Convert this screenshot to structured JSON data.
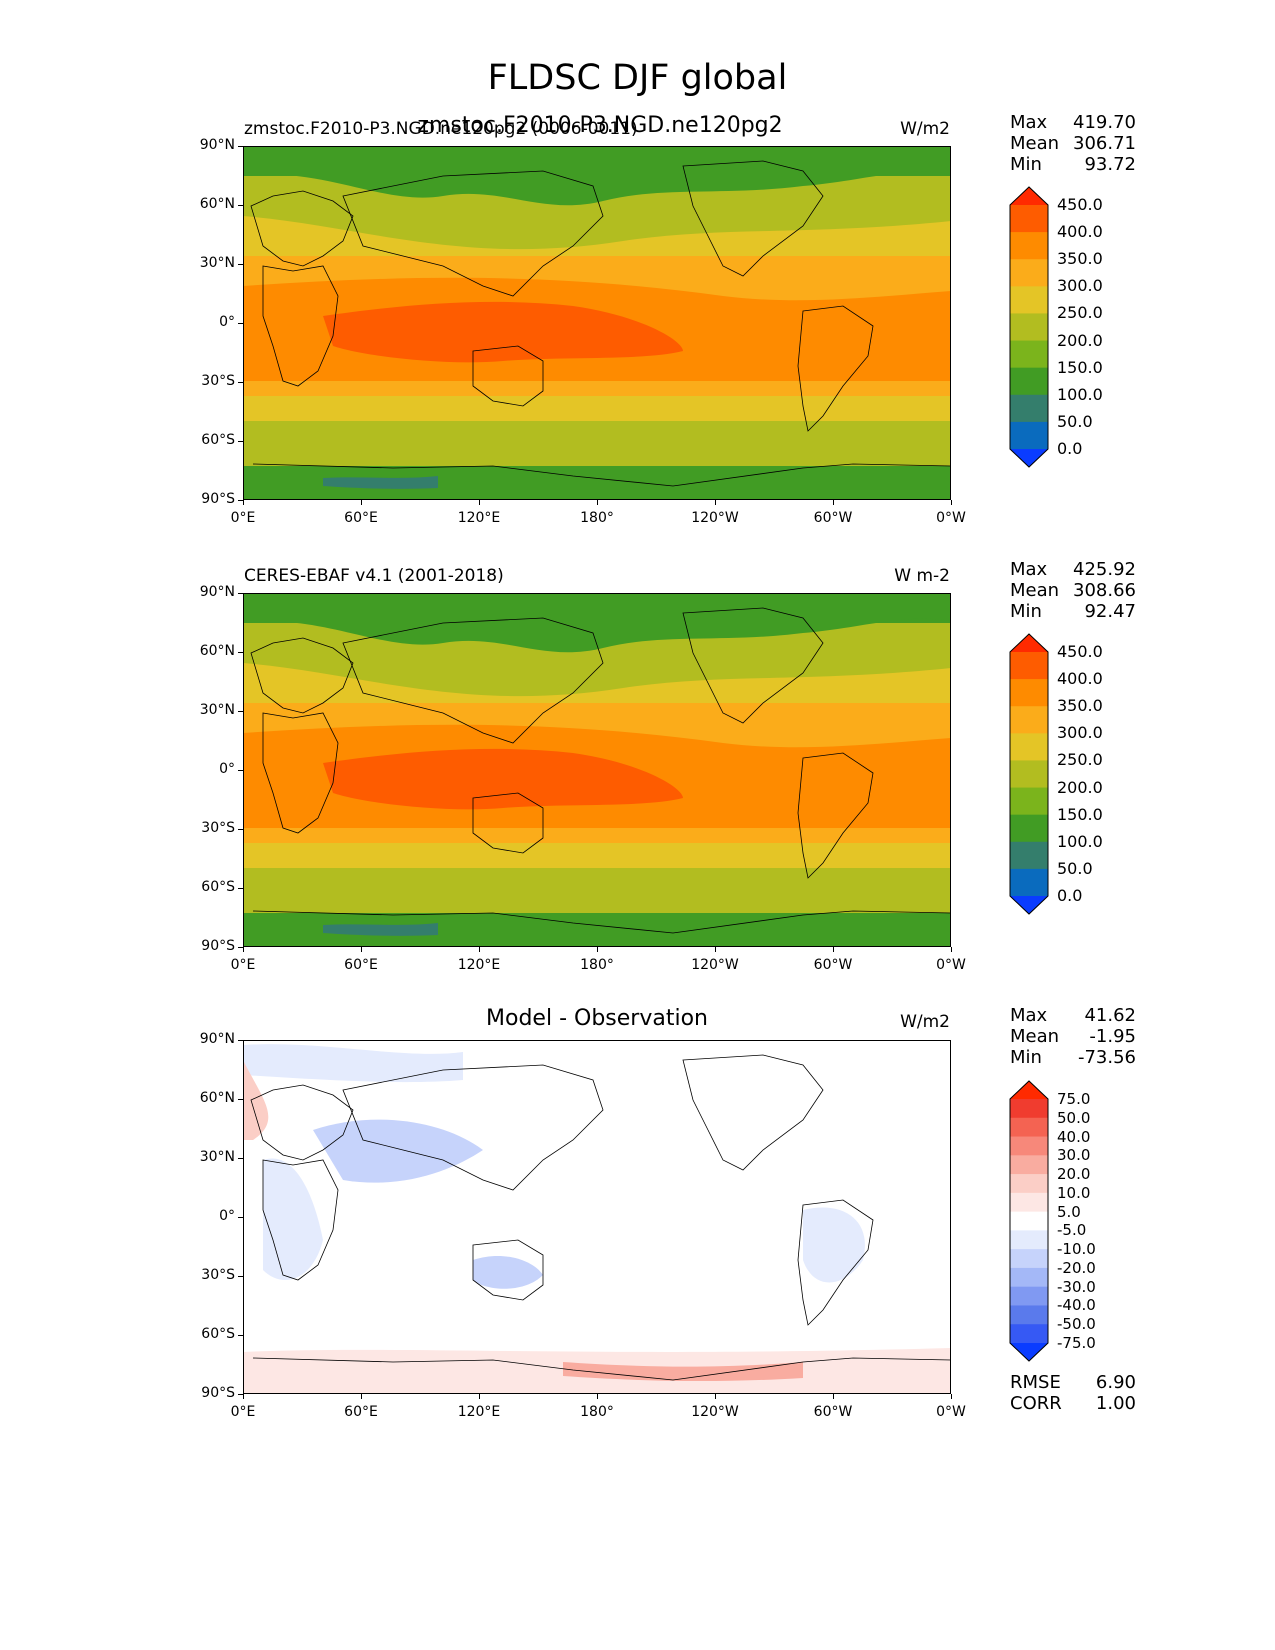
{
  "title": "FLDSC DJF global",
  "panels": [
    {
      "left_title": "zmstoc.F2010-P3.NGD.ne120pg2 (0006-0011)",
      "left_title_overlap": "zmstoc.F2010-P3.NGD.ne120pg2",
      "center_title": "",
      "units": "W/m2",
      "stats": {
        "max_label": "Max",
        "max": "419.70",
        "mean_label": "Mean",
        "mean": "306.71",
        "min_label": "Min",
        "min": "93.72"
      }
    },
    {
      "left_title": "CERES-EBAF v4.1 (2001-2018)",
      "center_title": "",
      "units": "W m-2",
      "stats": {
        "max_label": "Max",
        "max": "425.92",
        "mean_label": "Mean",
        "mean": "308.66",
        "min_label": "Min",
        "min": "92.47"
      }
    },
    {
      "left_title": "",
      "center_title": "Model - Observation",
      "units": "W/m2",
      "stats": {
        "max_label": "Max",
        "max": "41.62",
        "mean_label": "Mean",
        "mean": "-1.95",
        "min_label": "Min",
        "min": "-73.56"
      },
      "extra": {
        "rmse_label": "RMSE",
        "rmse": "6.90",
        "corr_label": "CORR",
        "corr": "1.00"
      }
    }
  ],
  "lat_ticks": [
    "90°N",
    "60°N",
    "30°N",
    "0°",
    "30°S",
    "60°S",
    "90°S"
  ],
  "lon_ticks": [
    "0°E",
    "60°E",
    "120°E",
    "180°",
    "120°W",
    "60°W",
    "0°W"
  ],
  "colorbar_abs": {
    "labels": [
      "450.0",
      "400.0",
      "350.0",
      "300.0",
      "250.0",
      "200.0",
      "150.0",
      "100.0",
      "50.0",
      "0.0"
    ],
    "colors": [
      "#ff2a00",
      "#fe5c00",
      "#fe8b00",
      "#fbac1a",
      "#e4c526",
      "#b2bd20",
      "#7bb41c",
      "#419c24",
      "#347e6c",
      "#0a6bbe",
      "#0a3cff"
    ]
  },
  "colorbar_diff": {
    "labels": [
      "75.0",
      "50.0",
      "40.0",
      "30.0",
      "20.0",
      "10.0",
      "5.0",
      "-5.0",
      "-10.0",
      "-20.0",
      "-30.0",
      "-40.0",
      "-50.0",
      "-75.0"
    ],
    "colors": [
      "#ff2a00",
      "#f03c2f",
      "#f46352",
      "#f7887a",
      "#f9aca0",
      "#fbcec6",
      "#fde7e4",
      "#ffffff",
      "#e4ebfd",
      "#c6d3fb",
      "#a4b8f7",
      "#8099f2",
      "#5a7aec",
      "#3659f4",
      "#0a3cff"
    ]
  },
  "map_colors": {
    "polar": "#419c24",
    "polar_low": "#347e6c",
    "mid_lat": "#b2bd20",
    "subtrop": "#e4c526",
    "trop_edge": "#fbac1a",
    "tropics": "#fe8b00",
    "warm_pool": "#fe5c00",
    "diff_bg": "#ffffff",
    "diff_pos": "#f9aca0",
    "diff_neg": "#c6d3fb"
  }
}
